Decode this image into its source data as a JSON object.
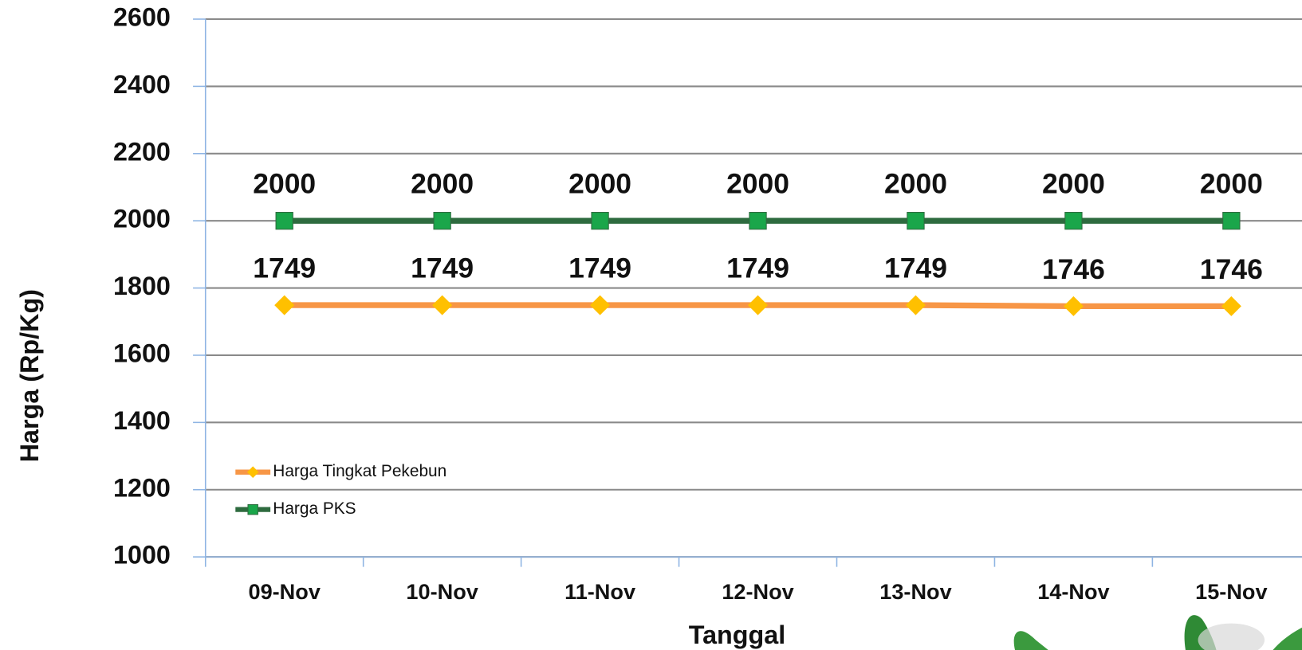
{
  "chart_data": {
    "type": "line",
    "x_label": "Tanggal",
    "y_label": "Harga (Rp/Kg)",
    "categories": [
      "09-Nov",
      "10-Nov",
      "11-Nov",
      "12-Nov",
      "13-Nov",
      "14-Nov",
      "15-Nov"
    ],
    "series": [
      {
        "name": "Harga Tingkat Pekebun",
        "color": "#f79646",
        "marker": "diamond",
        "marker_color": "#ffc000",
        "values": [
          1749,
          1749,
          1749,
          1749,
          1749,
          1746,
          1746
        ]
      },
      {
        "name": "Harga PKS",
        "color": "#2e6b3f",
        "marker": "square",
        "marker_color": "#1aa64a",
        "values": [
          2000,
          2000,
          2000,
          2000,
          2000,
          2000,
          2000
        ]
      }
    ],
    "ylim": [
      1000,
      2600
    ],
    "yticks": [
      1000,
      1200,
      1400,
      1600,
      1800,
      2000,
      2200,
      2400,
      2600
    ],
    "grid": true,
    "legend": "lower left"
  }
}
